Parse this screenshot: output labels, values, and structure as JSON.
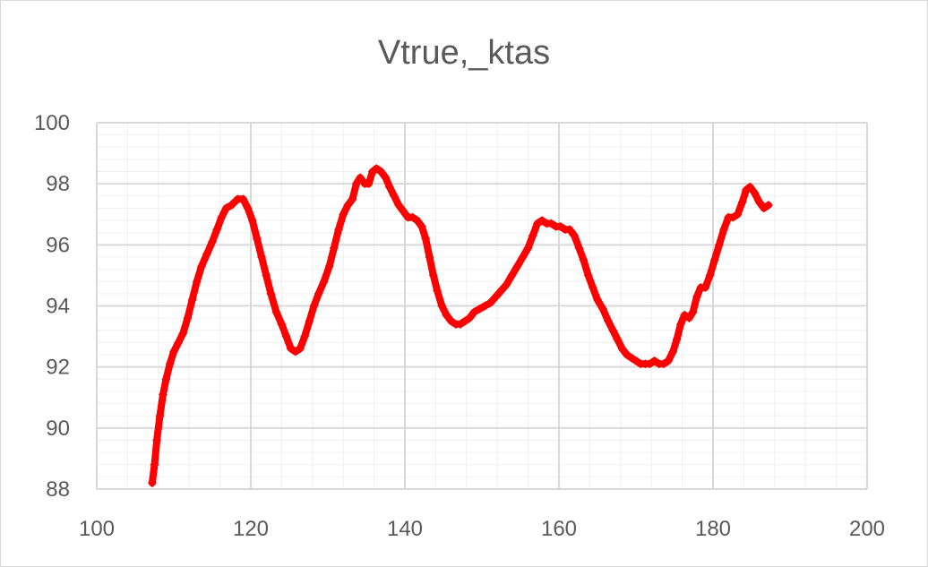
{
  "chart_data": {
    "type": "scatter",
    "title": "Vtrue,_ktas",
    "xlabel": "",
    "ylabel": "",
    "xlim": [
      100,
      200
    ],
    "ylim": [
      88,
      100
    ],
    "x_major_ticks": [
      100,
      120,
      140,
      160,
      180,
      200
    ],
    "y_major_ticks": [
      88,
      90,
      92,
      94,
      96,
      98,
      100
    ],
    "x_tick_labels": [
      "100",
      "120",
      "140",
      "160",
      "180",
      "200"
    ],
    "y_tick_labels": [
      "88",
      "90",
      "92",
      "94",
      "96",
      "98",
      "100"
    ],
    "grid": "major and minor",
    "legend": "none",
    "series": [
      {
        "color": "#ff0000",
        "marker": "diamond",
        "points": [
          [
            107.2,
            88.2
          ],
          [
            107.5,
            88.8
          ],
          [
            107.8,
            89.6
          ],
          [
            108.2,
            90.4
          ],
          [
            108.6,
            91.1
          ],
          [
            109.0,
            91.6
          ],
          [
            109.5,
            92.1
          ],
          [
            110.0,
            92.5
          ],
          [
            110.6,
            92.8
          ],
          [
            111.2,
            93.1
          ],
          [
            111.8,
            93.6
          ],
          [
            112.4,
            94.2
          ],
          [
            113.0,
            94.8
          ],
          [
            113.6,
            95.3
          ],
          [
            114.3,
            95.7
          ],
          [
            115.0,
            96.1
          ],
          [
            115.6,
            96.5
          ],
          [
            116.2,
            96.9
          ],
          [
            116.8,
            97.2
          ],
          [
            117.5,
            97.3
          ],
          [
            118.3,
            97.5
          ],
          [
            119.0,
            97.5
          ],
          [
            119.6,
            97.2
          ],
          [
            120.2,
            96.8
          ],
          [
            120.8,
            96.2
          ],
          [
            121.4,
            95.6
          ],
          [
            122.0,
            95.0
          ],
          [
            122.6,
            94.4
          ],
          [
            123.3,
            93.8
          ],
          [
            124.0,
            93.4
          ],
          [
            124.6,
            93.0
          ],
          [
            125.2,
            92.6
          ],
          [
            125.8,
            92.5
          ],
          [
            126.4,
            92.6
          ],
          [
            127.0,
            93.0
          ],
          [
            127.6,
            93.5
          ],
          [
            128.2,
            94.0
          ],
          [
            128.8,
            94.4
          ],
          [
            129.5,
            94.8
          ],
          [
            130.2,
            95.3
          ],
          [
            130.8,
            95.9
          ],
          [
            131.4,
            96.5
          ],
          [
            132.0,
            97.0
          ],
          [
            132.6,
            97.3
          ],
          [
            133.2,
            97.5
          ],
          [
            133.7,
            98.0
          ],
          [
            134.2,
            98.2
          ],
          [
            134.8,
            98.0
          ],
          [
            135.3,
            98.0
          ],
          [
            135.8,
            98.4
          ],
          [
            136.3,
            98.5
          ],
          [
            136.9,
            98.4
          ],
          [
            137.5,
            98.2
          ],
          [
            138.0,
            97.9
          ],
          [
            138.6,
            97.6
          ],
          [
            139.2,
            97.3
          ],
          [
            139.8,
            97.1
          ],
          [
            140.4,
            96.9
          ],
          [
            141.0,
            96.9
          ],
          [
            141.6,
            96.8
          ],
          [
            142.2,
            96.6
          ],
          [
            142.7,
            96.2
          ],
          [
            143.2,
            95.6
          ],
          [
            143.7,
            95.0
          ],
          [
            144.2,
            94.5
          ],
          [
            144.8,
            94.0
          ],
          [
            145.4,
            93.7
          ],
          [
            146.0,
            93.5
          ],
          [
            146.6,
            93.4
          ],
          [
            147.2,
            93.4
          ],
          [
            147.8,
            93.5
          ],
          [
            148.4,
            93.6
          ],
          [
            149.0,
            93.8
          ],
          [
            149.7,
            93.9
          ],
          [
            150.4,
            94.0
          ],
          [
            151.1,
            94.1
          ],
          [
            151.8,
            94.3
          ],
          [
            152.5,
            94.5
          ],
          [
            153.2,
            94.7
          ],
          [
            153.9,
            95.0
          ],
          [
            154.6,
            95.3
          ],
          [
            155.3,
            95.6
          ],
          [
            156.0,
            95.9
          ],
          [
            156.6,
            96.3
          ],
          [
            157.2,
            96.7
          ],
          [
            157.8,
            96.8
          ],
          [
            158.4,
            96.7
          ],
          [
            159.0,
            96.7
          ],
          [
            159.6,
            96.6
          ],
          [
            160.2,
            96.6
          ],
          [
            160.8,
            96.5
          ],
          [
            161.4,
            96.5
          ],
          [
            162.0,
            96.3
          ],
          [
            162.6,
            95.9
          ],
          [
            163.2,
            95.5
          ],
          [
            163.8,
            95.0
          ],
          [
            164.4,
            94.6
          ],
          [
            165.0,
            94.2
          ],
          [
            165.7,
            93.9
          ],
          [
            166.4,
            93.5
          ],
          [
            167.0,
            93.2
          ],
          [
            167.6,
            92.9
          ],
          [
            168.2,
            92.6
          ],
          [
            168.8,
            92.4
          ],
          [
            169.4,
            92.3
          ],
          [
            170.0,
            92.2
          ],
          [
            170.6,
            92.1
          ],
          [
            171.2,
            92.1
          ],
          [
            171.8,
            92.1
          ],
          [
            172.4,
            92.2
          ],
          [
            173.0,
            92.1
          ],
          [
            173.6,
            92.1
          ],
          [
            174.2,
            92.2
          ],
          [
            174.8,
            92.5
          ],
          [
            175.3,
            92.9
          ],
          [
            175.8,
            93.4
          ],
          [
            176.3,
            93.7
          ],
          [
            176.9,
            93.6
          ],
          [
            177.4,
            93.8
          ],
          [
            177.9,
            94.3
          ],
          [
            178.4,
            94.6
          ],
          [
            179.0,
            94.6
          ],
          [
            179.6,
            95.0
          ],
          [
            180.2,
            95.5
          ],
          [
            180.8,
            96.0
          ],
          [
            181.4,
            96.5
          ],
          [
            182.0,
            96.9
          ],
          [
            182.6,
            96.9
          ],
          [
            183.2,
            97.0
          ],
          [
            183.8,
            97.4
          ],
          [
            184.3,
            97.8
          ],
          [
            184.8,
            97.9
          ],
          [
            185.4,
            97.7
          ],
          [
            186.0,
            97.4
          ],
          [
            186.6,
            97.2
          ],
          [
            187.2,
            97.3
          ]
        ]
      }
    ]
  }
}
